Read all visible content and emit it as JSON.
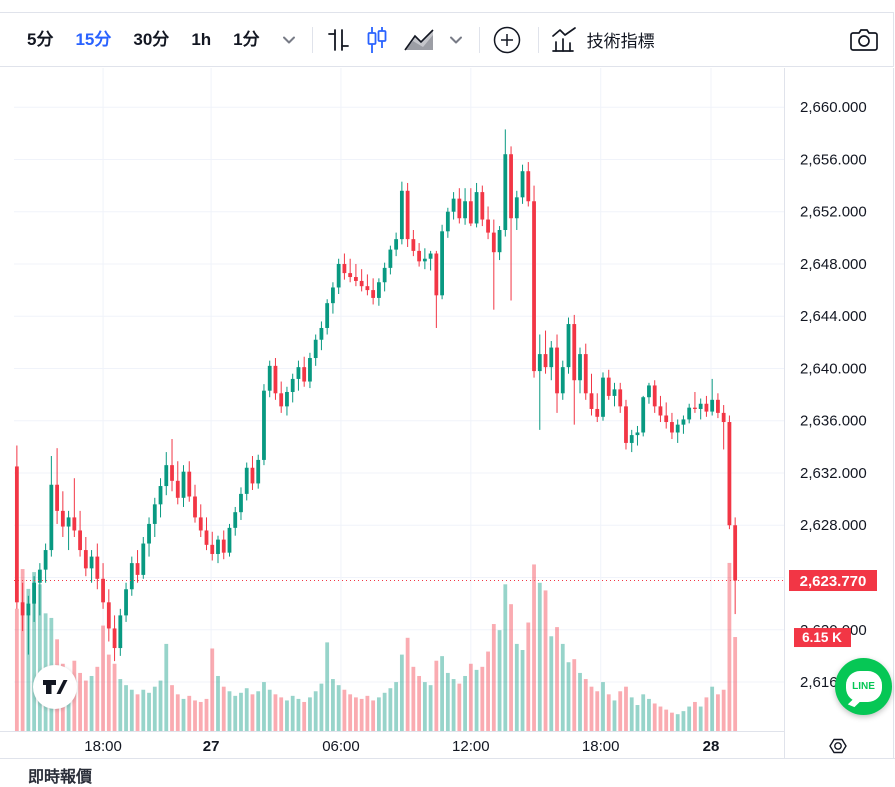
{
  "toolbar": {
    "timeframes": [
      {
        "label": "5分",
        "active": false
      },
      {
        "label": "15分",
        "active": true
      },
      {
        "label": "30分",
        "active": false
      },
      {
        "label": "1h",
        "active": false
      },
      {
        "label": "1分",
        "active": false
      }
    ],
    "indicators_label": "技術指標"
  },
  "colors": {
    "up": "#089981",
    "down": "#F23645",
    "accent_blue": "#2962FF",
    "grid": "#f0f3fa",
    "axis_border": "#e0e3eb",
    "text": "#131722",
    "muted_icon": "#787b86",
    "badge_red": "#F23645",
    "line_brand_green": "#06C755"
  },
  "price_axis": {
    "tick_labels": [
      {
        "value": 2660,
        "text": "2,660.000"
      },
      {
        "value": 2656,
        "text": "2,656.000"
      },
      {
        "value": 2652,
        "text": "2,652.000"
      },
      {
        "value": 2648,
        "text": "2,648.000"
      },
      {
        "value": 2644,
        "text": "2,644.000"
      },
      {
        "value": 2640,
        "text": "2,640.000"
      },
      {
        "value": 2636,
        "text": "2,636.000"
      },
      {
        "value": 2632,
        "text": "2,632.000"
      },
      {
        "value": 2628,
        "text": "2,628.000"
      },
      {
        "value": 2620,
        "text": "2,620.000"
      },
      {
        "value": 2616,
        "text": "2,616.000"
      }
    ],
    "gridline_values": [
      2660,
      2656,
      2652,
      2648,
      2644,
      2640,
      2636,
      2632,
      2628,
      2624,
      2620,
      2616
    ],
    "visible_max": 2663.0,
    "visible_min": 2612.25,
    "last_price_badge": "2,623.770",
    "volume_badge": "6.15 K"
  },
  "time_axis": {
    "labels": [
      {
        "text": "18:00",
        "candle_index": 15.0,
        "bold": false
      },
      {
        "text": "27",
        "candle_index": 33.8,
        "bold": true
      },
      {
        "text": "06:00",
        "candle_index": 56.4,
        "bold": false
      },
      {
        "text": "12:00",
        "candle_index": 79.0,
        "bold": false
      },
      {
        "text": "18:00",
        "candle_index": 101.6,
        "bold": false
      },
      {
        "text": "28",
        "candle_index": 120.8,
        "bold": true
      }
    ]
  },
  "chart_data": {
    "type": "candlestick",
    "timeframe": "15m",
    "title": "",
    "last_price": 2623.77,
    "last_volume_k": 6.15,
    "legend_position": "none",
    "grid": true,
    "ohlc": [
      [
        2632.5,
        2634.1,
        2621.6,
        2622.1
      ],
      [
        2622.1,
        2623.6,
        2619.9,
        2621.1
      ],
      [
        2621.1,
        2622.6,
        2618.1,
        2622.0
      ],
      [
        2622.0,
        2624.1,
        2620.6,
        2623.6
      ],
      [
        2623.6,
        2625.1,
        2621.1,
        2624.6
      ],
      [
        2624.6,
        2626.6,
        2623.6,
        2626.1
      ],
      [
        2626.1,
        2633.3,
        2625.6,
        2631.1
      ],
      [
        2631.1,
        2633.9,
        2628.1,
        2629.1
      ],
      [
        2629.1,
        2630.6,
        2627.1,
        2627.9
      ],
      [
        2627.9,
        2629.1,
        2626.1,
        2628.6
      ],
      [
        2628.6,
        2631.6,
        2627.1,
        2627.6
      ],
      [
        2627.6,
        2629.1,
        2625.6,
        2626.1
      ],
      [
        2626.1,
        2627.1,
        2624.1,
        2624.7
      ],
      [
        2624.7,
        2626.1,
        2623.6,
        2625.6
      ],
      [
        2625.6,
        2626.6,
        2623.1,
        2623.9
      ],
      [
        2623.9,
        2625.1,
        2621.6,
        2622.1
      ],
      [
        2622.1,
        2623.1,
        2619.1,
        2620.1
      ],
      [
        2620.1,
        2621.1,
        2617.6,
        2618.6
      ],
      [
        2618.6,
        2621.6,
        2618.0,
        2621.1
      ],
      [
        2621.1,
        2623.6,
        2620.6,
        2623.1
      ],
      [
        2623.1,
        2625.6,
        2622.6,
        2625.1
      ],
      [
        2625.1,
        2626.1,
        2623.6,
        2624.2
      ],
      [
        2624.2,
        2627.1,
        2623.9,
        2626.6
      ],
      [
        2626.6,
        2628.6,
        2625.6,
        2628.1
      ],
      [
        2628.1,
        2630.1,
        2627.1,
        2629.6
      ],
      [
        2629.6,
        2631.6,
        2628.6,
        2631.0
      ],
      [
        2631.0,
        2633.6,
        2630.3,
        2632.6
      ],
      [
        2632.6,
        2634.6,
        2630.6,
        2631.4
      ],
      [
        2631.4,
        2632.9,
        2629.6,
        2630.1
      ],
      [
        2630.1,
        2632.6,
        2629.4,
        2632.1
      ],
      [
        2632.1,
        2632.9,
        2629.8,
        2630.2
      ],
      [
        2630.2,
        2631.1,
        2628.2,
        2628.6
      ],
      [
        2628.6,
        2629.6,
        2627.1,
        2627.6
      ],
      [
        2627.6,
        2628.6,
        2626.1,
        2626.5
      ],
      [
        2626.5,
        2627.5,
        2625.3,
        2625.8
      ],
      [
        2625.8,
        2627.2,
        2625.1,
        2626.9
      ],
      [
        2626.9,
        2627.6,
        2625.4,
        2625.9
      ],
      [
        2625.9,
        2628.1,
        2625.6,
        2627.8
      ],
      [
        2627.8,
        2629.4,
        2627.2,
        2629.0
      ],
      [
        2629.0,
        2630.9,
        2628.4,
        2630.4
      ],
      [
        2630.4,
        2632.8,
        2629.9,
        2632.4
      ],
      [
        2632.4,
        2633.3,
        2630.7,
        2631.2
      ],
      [
        2631.2,
        2633.4,
        2630.8,
        2633.0
      ],
      [
        2633.0,
        2638.8,
        2632.6,
        2638.3
      ],
      [
        2638.3,
        2640.6,
        2637.8,
        2640.2
      ],
      [
        2640.2,
        2640.8,
        2637.6,
        2638.1
      ],
      [
        2638.1,
        2639.0,
        2636.6,
        2637.1
      ],
      [
        2637.1,
        2638.6,
        2636.4,
        2638.2
      ],
      [
        2638.2,
        2639.6,
        2637.4,
        2639.2
      ],
      [
        2639.2,
        2640.6,
        2638.3,
        2640.1
      ],
      [
        2640.1,
        2640.9,
        2638.6,
        2639.0
      ],
      [
        2639.0,
        2641.2,
        2638.5,
        2640.8
      ],
      [
        2640.8,
        2642.6,
        2640.2,
        2642.2
      ],
      [
        2642.2,
        2643.6,
        2641.4,
        2643.1
      ],
      [
        2643.1,
        2645.3,
        2642.6,
        2645.0
      ],
      [
        2645.0,
        2646.6,
        2644.2,
        2646.2
      ],
      [
        2646.2,
        2648.4,
        2645.7,
        2648.0
      ],
      [
        2648.0,
        2648.8,
        2646.8,
        2647.3
      ],
      [
        2647.3,
        2648.4,
        2646.6,
        2647.0
      ],
      [
        2647.0,
        2648.0,
        2646.3,
        2646.7
      ],
      [
        2646.7,
        2647.6,
        2645.9,
        2646.3
      ],
      [
        2646.3,
        2647.2,
        2645.6,
        2646.0
      ],
      [
        2646.0,
        2646.9,
        2644.9,
        2645.4
      ],
      [
        2645.4,
        2646.9,
        2644.8,
        2646.6
      ],
      [
        2646.6,
        2648.1,
        2645.9,
        2647.7
      ],
      [
        2647.7,
        2649.4,
        2647.2,
        2649.1
      ],
      [
        2649.1,
        2650.4,
        2648.6,
        2649.9
      ],
      [
        2649.9,
        2654.3,
        2649.5,
        2653.6
      ],
      [
        2653.6,
        2654.2,
        2649.3,
        2649.9
      ],
      [
        2649.9,
        2650.6,
        2648.6,
        2649.0
      ],
      [
        2649.0,
        2649.6,
        2647.8,
        2648.2
      ],
      [
        2648.2,
        2649.2,
        2647.6,
        2648.4
      ],
      [
        2648.4,
        2649.0,
        2647.5,
        2648.8
      ],
      [
        2648.8,
        2649.0,
        2643.1,
        2645.6
      ],
      [
        2645.6,
        2651.0,
        2645.3,
        2650.5
      ],
      [
        2650.5,
        2652.3,
        2650.0,
        2652.0
      ],
      [
        2652.0,
        2653.5,
        2651.4,
        2653.0
      ],
      [
        2653.0,
        2653.8,
        2651.1,
        2651.5
      ],
      [
        2651.5,
        2653.8,
        2651.0,
        2652.8
      ],
      [
        2652.8,
        2653.8,
        2650.9,
        2651.1
      ],
      [
        2651.1,
        2654.2,
        2650.8,
        2653.5
      ],
      [
        2653.5,
        2654.0,
        2650.9,
        2651.4
      ],
      [
        2651.4,
        2652.4,
        2649.9,
        2650.4
      ],
      [
        2650.4,
        2651.4,
        2644.5,
        2648.9
      ],
      [
        2648.9,
        2650.9,
        2648.3,
        2650.6
      ],
      [
        2650.6,
        2658.3,
        2650.1,
        2656.4
      ],
      [
        2656.4,
        2657.0,
        2645.2,
        2651.5
      ],
      [
        2651.5,
        2653.6,
        2650.6,
        2653.1
      ],
      [
        2653.1,
        2655.6,
        2652.6,
        2655.1
      ],
      [
        2655.1,
        2655.8,
        2652.4,
        2652.8
      ],
      [
        2652.8,
        2654.0,
        2639.3,
        2639.8
      ],
      [
        2639.8,
        2642.6,
        2635.3,
        2641.1
      ],
      [
        2641.1,
        2642.9,
        2639.6,
        2640.1
      ],
      [
        2640.1,
        2642.1,
        2639.1,
        2641.6
      ],
      [
        2641.6,
        2642.6,
        2636.6,
        2638.1
      ],
      [
        2638.1,
        2640.6,
        2637.6,
        2640.1
      ],
      [
        2640.1,
        2643.9,
        2639.6,
        2643.4
      ],
      [
        2643.4,
        2644.1,
        2635.7,
        2639.1
      ],
      [
        2639.1,
        2641.6,
        2638.1,
        2641.1
      ],
      [
        2641.1,
        2641.9,
        2637.6,
        2638.1
      ],
      [
        2638.1,
        2639.6,
        2636.4,
        2636.9
      ],
      [
        2636.9,
        2638.1,
        2635.9,
        2636.3
      ],
      [
        2636.3,
        2639.7,
        2636.0,
        2639.3
      ],
      [
        2639.3,
        2639.9,
        2637.6,
        2637.9
      ],
      [
        2637.9,
        2638.9,
        2637.1,
        2638.4
      ],
      [
        2638.4,
        2638.9,
        2636.6,
        2637.1
      ],
      [
        2637.1,
        2637.6,
        2633.8,
        2634.3
      ],
      [
        2634.3,
        2635.3,
        2633.6,
        2634.9
      ],
      [
        2634.9,
        2635.6,
        2634.1,
        2635.1
      ],
      [
        2635.1,
        2637.9,
        2634.8,
        2637.8
      ],
      [
        2637.8,
        2638.9,
        2637.3,
        2638.7
      ],
      [
        2638.7,
        2639.1,
        2636.6,
        2637.1
      ],
      [
        2637.1,
        2637.9,
        2635.9,
        2636.4
      ],
      [
        2636.4,
        2637.4,
        2635.4,
        2635.9
      ],
      [
        2635.9,
        2636.6,
        2634.6,
        2635.1
      ],
      [
        2635.1,
        2636.1,
        2634.3,
        2635.7
      ],
      [
        2635.7,
        2636.4,
        2635.0,
        2636.1
      ],
      [
        2636.1,
        2637.3,
        2635.8,
        2637.0
      ],
      [
        2637.0,
        2638.2,
        2636.6,
        2636.9
      ],
      [
        2636.9,
        2637.7,
        2636.1,
        2637.3
      ],
      [
        2637.3,
        2637.9,
        2636.3,
        2636.7
      ],
      [
        2636.7,
        2639.2,
        2636.4,
        2637.6
      ],
      [
        2637.6,
        2638.1,
        2636.2,
        2636.6
      ],
      [
        2636.6,
        2637.2,
        2633.8,
        2635.9
      ],
      [
        2635.9,
        2636.4,
        2627.7,
        2628.0
      ],
      [
        2628.0,
        2628.6,
        2621.2,
        2623.77
      ]
    ],
    "volumes_k": [
      8.0,
      10.6,
      9.3,
      10.4,
      9.6,
      7.7,
      7.4,
      6.0,
      4.4,
      3.7,
      4.6,
      3.8,
      3.3,
      3.6,
      4.2,
      6.9,
      5.0,
      4.4,
      3.4,
      3.0,
      2.7,
      2.4,
      2.7,
      2.5,
      2.9,
      3.3,
      5.7,
      3.0,
      2.4,
      2.1,
      2.3,
      2.0,
      1.9,
      2.1,
      5.4,
      3.6,
      2.9,
      2.6,
      2.3,
      2.5,
      2.8,
      2.4,
      2.6,
      3.2,
      2.7,
      2.4,
      2.2,
      2.0,
      2.3,
      2.1,
      1.9,
      2.2,
      2.6,
      3.1,
      5.8,
      3.4,
      3.0,
      2.7,
      2.4,
      2.2,
      2.1,
      2.3,
      2.0,
      2.2,
      2.5,
      2.8,
      3.2,
      5.0,
      6.1,
      4.2,
      3.6,
      3.2,
      3.0,
      4.6,
      4.9,
      3.8,
      3.4,
      3.1,
      3.6,
      4.4,
      4.0,
      4.2,
      5.2,
      7.0,
      6.6,
      9.6,
      8.3,
      5.7,
      5.3,
      7.1,
      10.9,
      9.7,
      9.2,
      6.2,
      6.8,
      5.7,
      4.5,
      4.7,
      3.8,
      3.4,
      2.9,
      2.6,
      3.2,
      2.4,
      2.0,
      2.6,
      2.9,
      2.2,
      1.7,
      2.4,
      2.1,
      1.8,
      1.6,
      1.4,
      1.2,
      1.1,
      1.3,
      1.6,
      1.9,
      1.6,
      2.2,
      2.9,
      2.4,
      2.7,
      11.0,
      6.15
    ]
  },
  "branding": {
    "tradingview_logo": "TV",
    "line_button_label": "LINE"
  },
  "bottom_partial_text": "即時報價"
}
